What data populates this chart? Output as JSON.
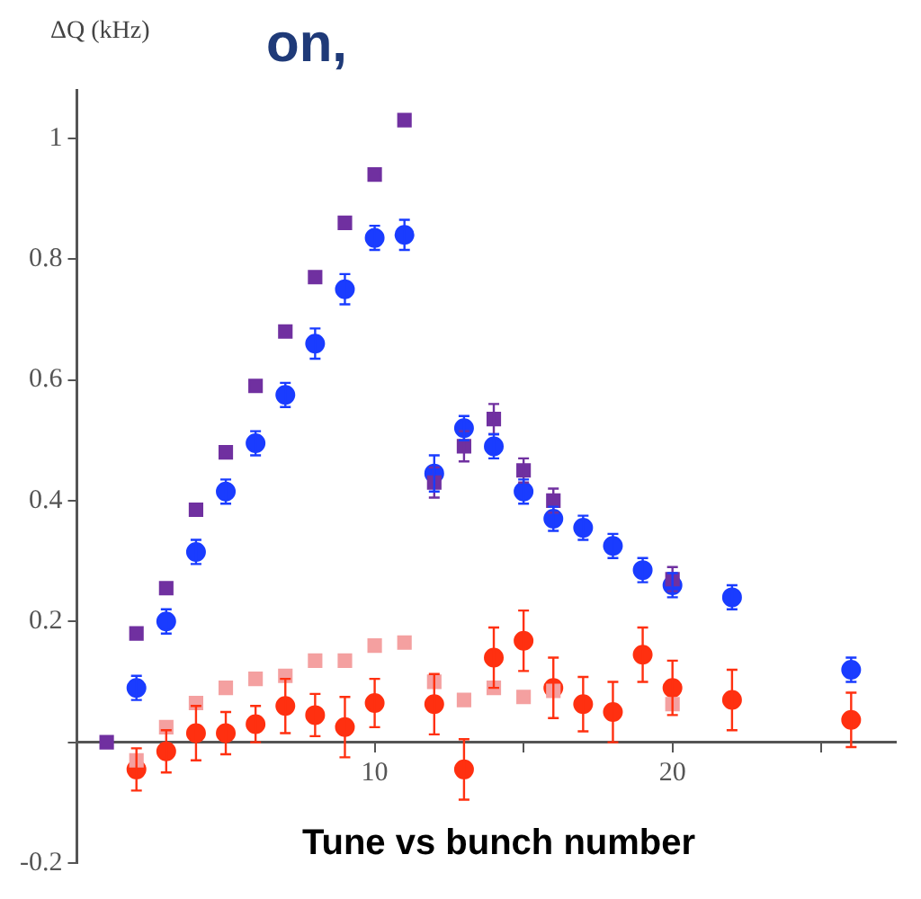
{
  "chart_data": {
    "type": "scatter",
    "ylabel": "ΔQ (kHz)",
    "annotations": [
      "on,",
      "Tune vs bunch number"
    ],
    "xlim": [
      0,
      27.5
    ],
    "xticks": [
      {
        "value": 5,
        "label": null
      },
      10,
      {
        "value": 15,
        "label": null
      },
      20,
      {
        "value": 25,
        "label": null
      }
    ],
    "ylim": [
      -0.2,
      1.08
    ],
    "yticks": [
      -0.2,
      {
        "value": 0,
        "label": null
      },
      0.2,
      0.4,
      0.6,
      0.8,
      1.0
    ],
    "grid": false,
    "legend": false,
    "series": [
      {
        "color": "#7030a0",
        "marker": "square",
        "x": [
          1,
          2,
          3,
          4,
          5,
          6,
          7,
          8,
          9,
          10,
          11,
          12,
          13,
          14,
          15,
          16,
          20
        ],
        "values": [
          0,
          0.18,
          0.255,
          0.385,
          0.48,
          0.59,
          0.68,
          0.77,
          0.86,
          0.94,
          1.03,
          0.43,
          0.49,
          0.535,
          0.45,
          0.4,
          0.27
        ],
        "errors": [
          null,
          null,
          null,
          null,
          null,
          null,
          null,
          null,
          null,
          null,
          null,
          0.025,
          0.025,
          0.025,
          0.02,
          0.02,
          0.02
        ]
      },
      {
        "color": "#1a3cff",
        "marker": "circle",
        "x": [
          2,
          3,
          4,
          5,
          6,
          7,
          8,
          9,
          10,
          11,
          12,
          13,
          14,
          15,
          16,
          17,
          18,
          19,
          20,
          22,
          26
        ],
        "values": [
          0.09,
          0.2,
          0.315,
          0.415,
          0.495,
          0.575,
          0.66,
          0.75,
          0.835,
          0.84,
          0.445,
          0.52,
          0.49,
          0.415,
          0.37,
          0.355,
          0.325,
          0.285,
          0.26,
          0.24,
          0.12
        ],
        "errors": [
          0.02,
          0.02,
          0.02,
          0.02,
          0.02,
          0.02,
          0.025,
          0.025,
          0.02,
          0.025,
          0.03,
          0.02,
          0.02,
          0.02,
          0.02,
          0.02,
          0.02,
          0.02,
          0.02,
          0.02,
          0.02
        ]
      },
      {
        "color": "#f4a0a0",
        "marker": "square",
        "x": [
          2,
          3,
          4,
          5,
          6,
          7,
          8,
          9,
          10,
          11,
          12,
          13,
          14,
          15,
          16,
          20
        ],
        "values": [
          -0.03,
          0.025,
          0.065,
          0.09,
          0.105,
          0.11,
          0.135,
          0.135,
          0.16,
          0.165,
          0.1,
          0.07,
          0.09,
          0.075,
          0.085,
          0.063
        ]
      },
      {
        "color": "#ff3010",
        "marker": "circle",
        "x": [
          2,
          3,
          4,
          5,
          6,
          7,
          8,
          9,
          10,
          12,
          13,
          14,
          15,
          16,
          17,
          18,
          19,
          20,
          22,
          26
        ],
        "values": [
          -0.045,
          -0.015,
          0.015,
          0.015,
          0.03,
          0.06,
          0.045,
          0.025,
          0.065,
          0.063,
          -0.045,
          0.14,
          0.168,
          0.09,
          0.063,
          0.05,
          0.145,
          0.09,
          0.07,
          0.037
        ],
        "errors": [
          0.035,
          0.035,
          0.045,
          0.035,
          0.03,
          0.045,
          0.035,
          0.05,
          0.04,
          0.05,
          0.05,
          0.05,
          0.05,
          0.05,
          0.045,
          0.05,
          0.045,
          0.045,
          0.05,
          0.045
        ]
      }
    ]
  }
}
